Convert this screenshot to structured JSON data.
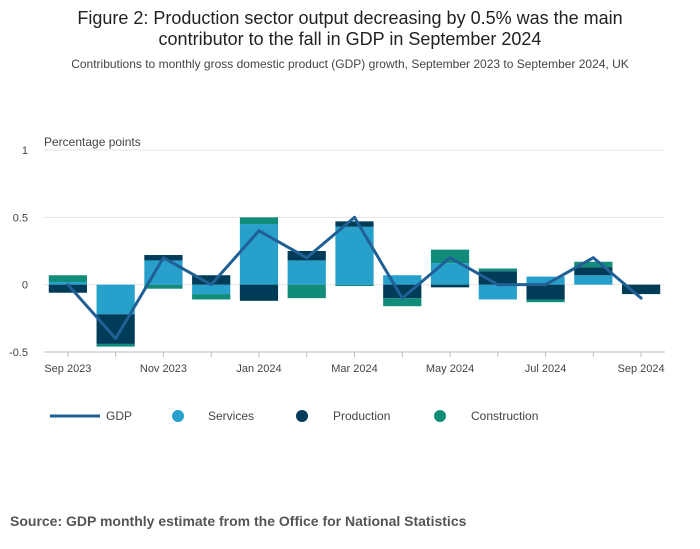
{
  "title": "Figure 2: Production sector output decreasing by 0.5% was the main contributor to the fall in GDP in September 2024",
  "subtitle": "Contributions to monthly gross domestic product (GDP) growth, September 2023 to September 2024, UK",
  "source": "Source: GDP monthly estimate from the Office for National Statistics",
  "chart_data": {
    "type": "bar",
    "stacked": true,
    "ylabel": "Percentage points",
    "ylim": [
      -0.5,
      1
    ],
    "yticks": [
      1,
      0.5,
      0,
      -0.5
    ],
    "ytick_labels": [
      "1",
      "0.5",
      "0",
      "-0.5"
    ],
    "categories": [
      "Sep 2023",
      "Oct 2023",
      "Nov 2023",
      "Dec 2023",
      "Jan 2024",
      "Feb 2024",
      "Mar 2024",
      "Apr 2024",
      "May 2024",
      "Jun 2024",
      "Jul 2024",
      "Aug 2024",
      "Sep 2024"
    ],
    "xtick_labels": [
      "Sep 2023",
      "",
      "Nov 2023",
      "",
      "Jan 2024",
      "",
      "Mar 2024",
      "",
      "May 2024",
      "",
      "Jul 2024",
      "",
      "Sep 2024"
    ],
    "series": [
      {
        "name": "GDP",
        "kind": "line",
        "color": "#206095",
        "values": [
          0,
          -0.4,
          0.2,
          0,
          0.4,
          0.2,
          0.5,
          -0.1,
          0.2,
          0,
          0,
          0.2,
          -0.1
        ]
      },
      {
        "name": "Services",
        "kind": "bar",
        "color": "#27a0cc",
        "values": [
          0.02,
          -0.22,
          0.18,
          -0.07,
          0.45,
          0.18,
          0.43,
          0.07,
          0.16,
          -0.11,
          0.06,
          0.07,
          0
        ]
      },
      {
        "name": "Production",
        "kind": "bar",
        "color": "#003c57",
        "values": [
          -0.06,
          -0.22,
          0.04,
          0.07,
          -0.12,
          0.07,
          0.04,
          -0.1,
          -0.02,
          0.1,
          -0.11,
          0.06,
          -0.07
        ]
      },
      {
        "name": "Construction",
        "kind": "bar",
        "color": "#118c7b",
        "values": [
          0.05,
          -0.02,
          -0.03,
          -0.04,
          0.05,
          -0.1,
          -0.01,
          -0.06,
          0.1,
          0.02,
          -0.02,
          0.04,
          0
        ]
      }
    ],
    "legend_position": "bottom-left",
    "grid": true
  }
}
